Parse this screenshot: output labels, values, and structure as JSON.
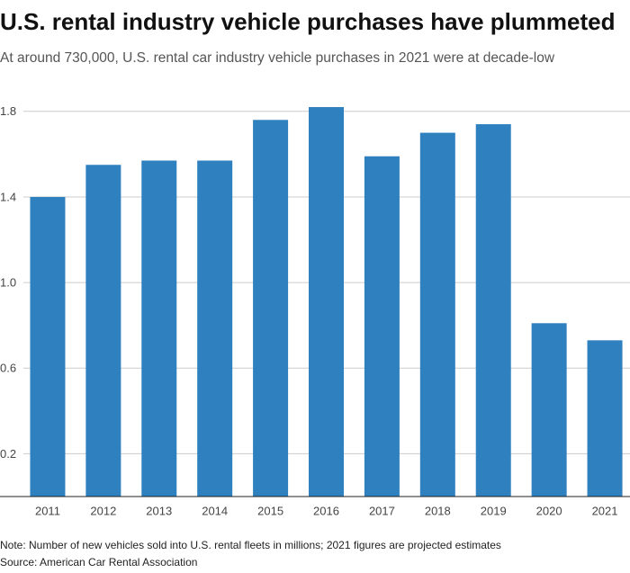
{
  "chart_data": {
    "type": "bar",
    "title": "U.S. rental industry vehicle purchases have plummeted",
    "subtitle": "At around 730,000, U.S. rental car industry vehicle purchases in 2021 were at decade-low",
    "note": "Note: Number of new vehicles sold into U.S. rental fleets in millions; 2021 figures are projected estimates",
    "source": "Source: American Car Rental Association",
    "categories": [
      "2011",
      "2012",
      "2013",
      "2014",
      "2015",
      "2016",
      "2017",
      "2018",
      "2019",
      "2020",
      "2021"
    ],
    "values": [
      1.4,
      1.55,
      1.57,
      1.57,
      1.76,
      1.82,
      1.59,
      1.7,
      1.74,
      0.81,
      0.73
    ],
    "color": "#2f80bf",
    "ylim": [
      0,
      1.9
    ],
    "yticks": [
      0.2,
      0.6,
      {
        "value": 1,
        "label": "1.0"
      },
      1.4,
      1.8
    ],
    "grid": true
  }
}
